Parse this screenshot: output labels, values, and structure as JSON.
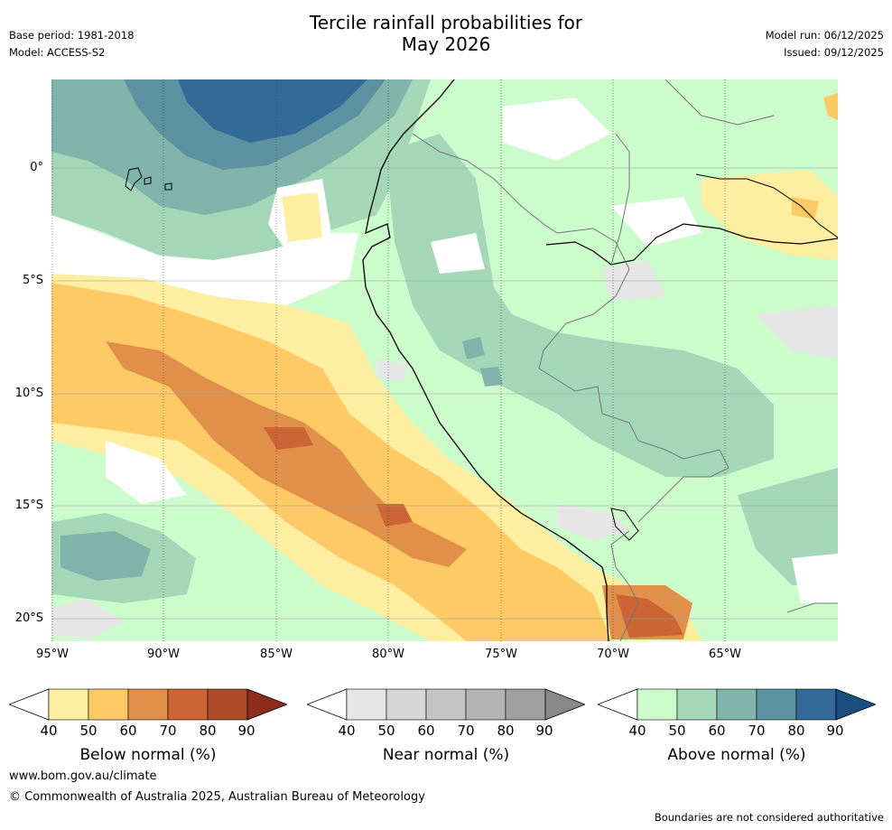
{
  "header": {
    "title_line1": "Tercile rainfall probabilities for",
    "title_line2": "May 2026",
    "base_period": "Base period: 1981-2018",
    "model": "Model: ACCESS-S2",
    "model_run": "Model run: 06/12/2025",
    "issued": "Issued: 09/12/2025"
  },
  "map": {
    "lat_labels": [
      "0°",
      "5°S",
      "10°S",
      "15°S",
      "20°S"
    ],
    "lon_labels": [
      "95°W",
      "90°W",
      "85°W",
      "80°W",
      "75°W",
      "70°W",
      "65°W"
    ],
    "region": "Western South America and adjacent Pacific"
  },
  "colorbars": [
    {
      "name": "below",
      "label": "Below normal (%)",
      "ticks": [
        "40",
        "50",
        "60",
        "70",
        "80",
        "90"
      ],
      "colors": [
        "#ffffff",
        "#feeea0",
        "#fdca66",
        "#e0904a",
        "#cc6434",
        "#ad4a27",
        "#8c2d1c"
      ]
    },
    {
      "name": "near",
      "label": "Near normal (%)",
      "ticks": [
        "40",
        "50",
        "60",
        "70",
        "80",
        "90"
      ],
      "colors": [
        "#ffffff",
        "#e6e6e6",
        "#d6d6d6",
        "#c4c4c4",
        "#b4b4b4",
        "#a0a0a0",
        "#888888"
      ]
    },
    {
      "name": "above",
      "label": "Above normal (%)",
      "ticks": [
        "40",
        "50",
        "60",
        "70",
        "80",
        "90"
      ],
      "colors": [
        "#ffffff",
        "#ccfbcc",
        "#a3d7b8",
        "#80b4aa",
        "#5b91a0",
        "#336a97",
        "#1a4e80"
      ]
    }
  ],
  "footer": {
    "website": "www.bom.gov.au/climate",
    "copyright": "© Commonwealth of Australia 2025, Australian Bureau of Meteorology",
    "disclaimer": "Boundaries are not considered authoritative"
  }
}
